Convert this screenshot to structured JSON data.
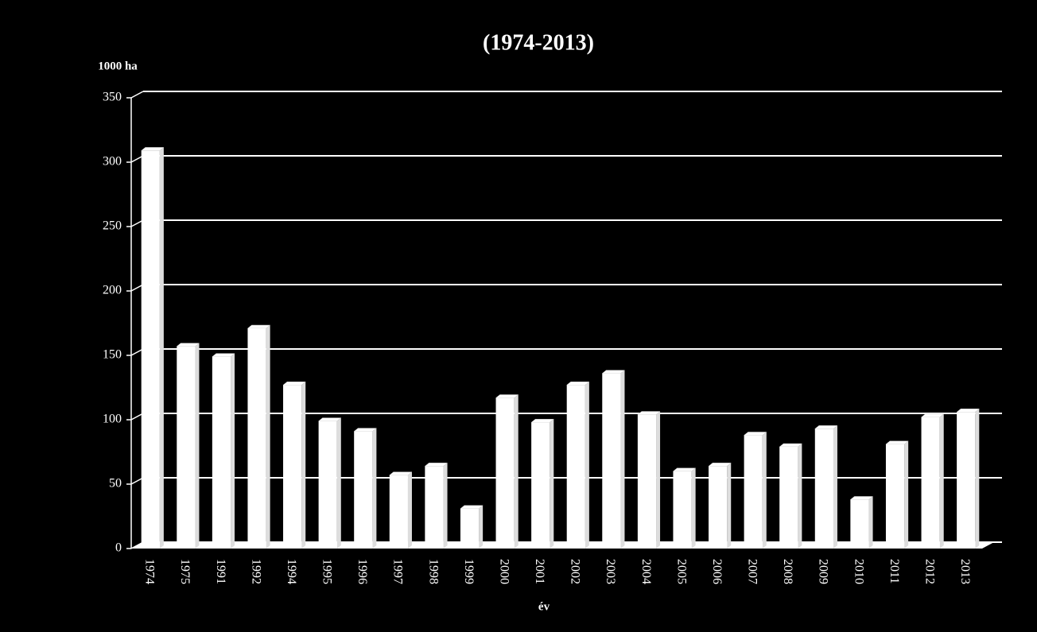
{
  "chart_data": {
    "type": "bar",
    "title": "(1974-2013)",
    "y_label": "1000 ha",
    "x_label": "év",
    "categories": [
      "1974",
      "1975",
      "1991",
      "1992",
      "1994",
      "1995",
      "1996",
      "1997",
      "1998",
      "1999",
      "2000",
      "2001",
      "2002",
      "2003",
      "2004",
      "2005",
      "2006",
      "2007",
      "2008",
      "2009",
      "2010",
      "2011",
      "2012",
      "2013"
    ],
    "values": [
      309,
      157,
      149,
      171,
      127,
      99,
      91,
      57,
      64,
      31,
      117,
      98,
      127,
      136,
      104,
      60,
      64,
      88,
      79,
      93,
      38,
      81,
      102,
      106
    ],
    "color": "#ffffff",
    "ylim": [
      0,
      350
    ],
    "yticks": [
      0,
      50,
      100,
      150,
      200,
      250,
      300,
      350
    ],
    "grid": true
  }
}
